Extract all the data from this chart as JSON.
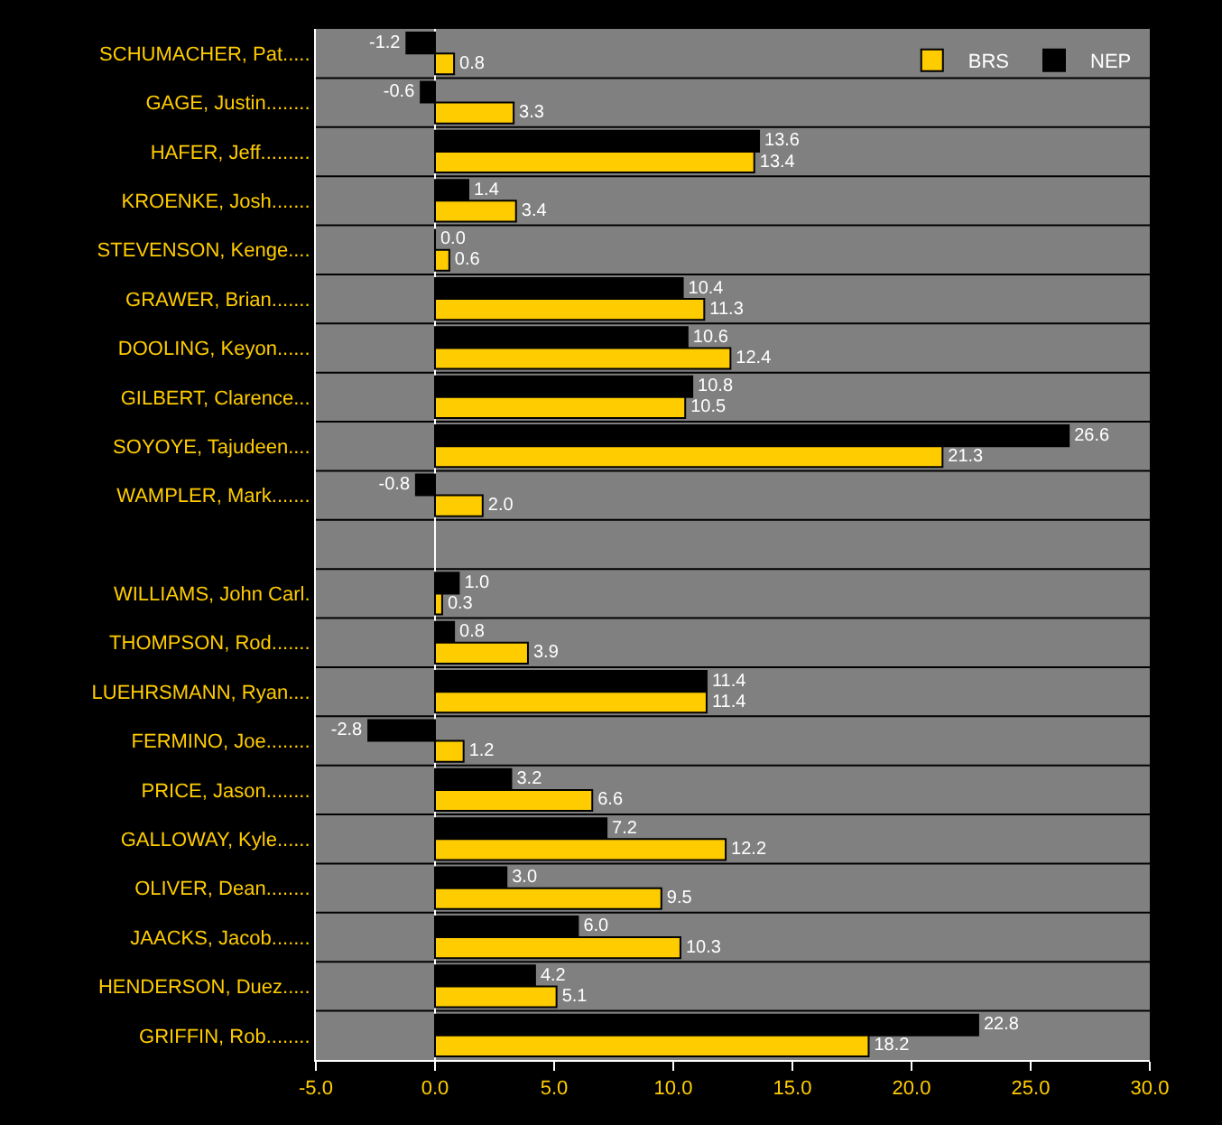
{
  "chart_data": {
    "type": "bar",
    "orientation": "horizontal",
    "categories": [
      "SCHUMACHER, Pat.....",
      "GAGE, Justin........",
      "HAFER, Jeff.........",
      "KROENKE, Josh.......",
      "STEVENSON, Kenge....",
      "GRAWER, Brian.......",
      "DOOLING, Keyon......",
      "GILBERT, Clarence...",
      "SOYOYE, Tajudeen....",
      "WAMPLER, Mark.......",
      null,
      "WILLIAMS, John Carl.",
      "THOMPSON, Rod.......",
      "LUEHRSMANN, Ryan....",
      "FERMINO, Joe........",
      "PRICE, Jason........",
      "GALLOWAY, Kyle......",
      "OLIVER, Dean........",
      "JAACKS, Jacob.......",
      "HENDERSON, Duez.....",
      "GRIFFIN, Rob........"
    ],
    "series": [
      {
        "name": "NEP",
        "color": "#000000",
        "values": [
          -1.2,
          -0.6,
          13.6,
          1.4,
          0.0,
          10.4,
          10.6,
          10.8,
          26.6,
          -0.8,
          null,
          1.0,
          0.8,
          11.4,
          -2.8,
          3.2,
          7.2,
          3.0,
          6.0,
          4.2,
          22.8
        ],
        "value_labels": [
          "-1.2",
          "-0.6",
          "13.6",
          "1.4",
          "0.0",
          "10.4",
          "10.6",
          "10.8",
          "26.6",
          "-0.8",
          null,
          "1.0",
          "0.8",
          "11.4",
          "-2.8",
          "3.2",
          "7.2",
          "3.0",
          "6.0",
          "4.2",
          "22.8"
        ]
      },
      {
        "name": "BRS",
        "color": "#ffcc00",
        "values": [
          0.8,
          3.3,
          13.4,
          3.4,
          0.6,
          11.3,
          12.4,
          10.5,
          21.3,
          2.0,
          null,
          0.3,
          3.9,
          11.4,
          1.2,
          6.6,
          12.2,
          9.5,
          10.3,
          5.1,
          18.2
        ],
        "value_labels": [
          "0.8",
          "3.3",
          "13.4",
          "3.4",
          "0.6",
          "11.3",
          "12.4",
          "10.5",
          "21.3",
          "2.0",
          null,
          "0.3",
          "3.9",
          "11.4",
          "1.2",
          "6.6",
          "12.2",
          "9.5",
          "10.3",
          "5.1",
          "18.2"
        ]
      }
    ],
    "xlim": [
      -5,
      30
    ],
    "xticks": [
      {
        "value": -5,
        "label": "-5.0"
      },
      {
        "value": 0,
        "label": "0.0"
      },
      {
        "value": 5,
        "label": "5.0"
      },
      {
        "value": 10,
        "label": "10.0"
      },
      {
        "value": 15,
        "label": "15.0"
      },
      {
        "value": 20,
        "label": "20.0"
      },
      {
        "value": 25,
        "label": "25.0"
      },
      {
        "value": 30,
        "label": "30.0"
      }
    ],
    "grid": "y",
    "legend": "top right"
  }
}
